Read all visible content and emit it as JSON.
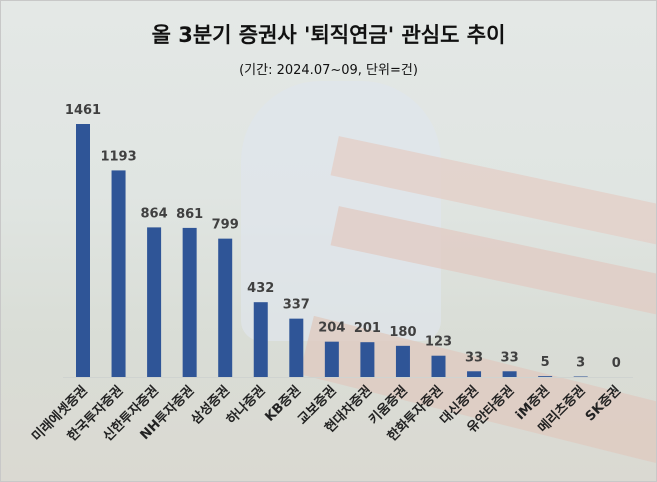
{
  "chart_data": {
    "type": "bar",
    "title": "올 3분기 증권사 '퇴직연금' 관심도 추이",
    "subtitle": "(기간: 2024.07~09, 단위=건)",
    "categories": [
      "미래에셋증권",
      "한국투자증권",
      "신한투자증권",
      "NH투자증권",
      "삼성증권",
      "하나증권",
      "KB증권",
      "교보증권",
      "현대차증권",
      "키움증권",
      "한화투자증권",
      "대신증권",
      "유안타증권",
      "iM증권",
      "메리츠증권",
      "SK증권"
    ],
    "values": [
      1461,
      1193,
      864,
      861,
      799,
      432,
      337,
      204,
      201,
      180,
      123,
      33,
      33,
      5,
      3,
      0
    ],
    "ylim": [
      0,
      1461
    ],
    "grid": false,
    "legend": "none",
    "bar_color": "#2f5597",
    "data_labels": true
  }
}
